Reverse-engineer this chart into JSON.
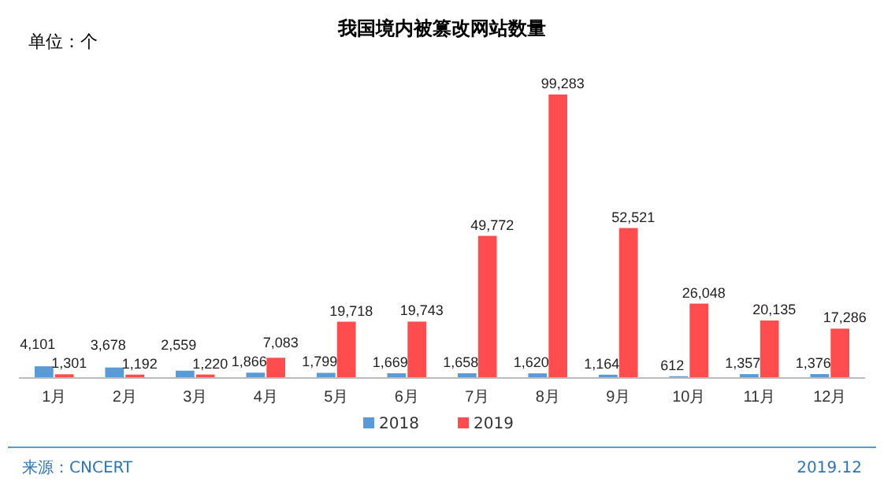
{
  "chart_data": {
    "type": "bar",
    "title": "我国境内被篡改网站数量",
    "categories": [
      "1月",
      "2月",
      "3月",
      "4月",
      "5月",
      "6月",
      "7月",
      "8月",
      "9月",
      "10月",
      "11月",
      "12月"
    ],
    "series": [
      {
        "name": "2018",
        "color": "#5b9bd5",
        "values": [
          4101,
          3678,
          2559,
          1866,
          1799,
          1669,
          1658,
          1620,
          1164,
          612,
          1357,
          1376
        ],
        "value_labels": [
          "4,101",
          "3,678",
          "2,559",
          "1,866",
          "1,799",
          "1,669",
          "1,658",
          "1,620",
          "1,164",
          "612",
          "1,357",
          "1,376"
        ]
      },
      {
        "name": "2019",
        "color": "#ff4d4f",
        "values": [
          1301,
          1192,
          1220,
          7083,
          19718,
          19743,
          49772,
          99283,
          52521,
          26048,
          20135,
          17286
        ],
        "value_labels": [
          "1,301",
          "1,192",
          "1,220",
          "7,083",
          "19,718",
          "19,743",
          "49,772",
          "99,283",
          "52,521",
          "26,048",
          "20,135",
          "17,286"
        ]
      }
    ],
    "legend": "bottom",
    "annotations": [
      "单位：个",
      "来源：CNCERT",
      "2019.12"
    ]
  }
}
